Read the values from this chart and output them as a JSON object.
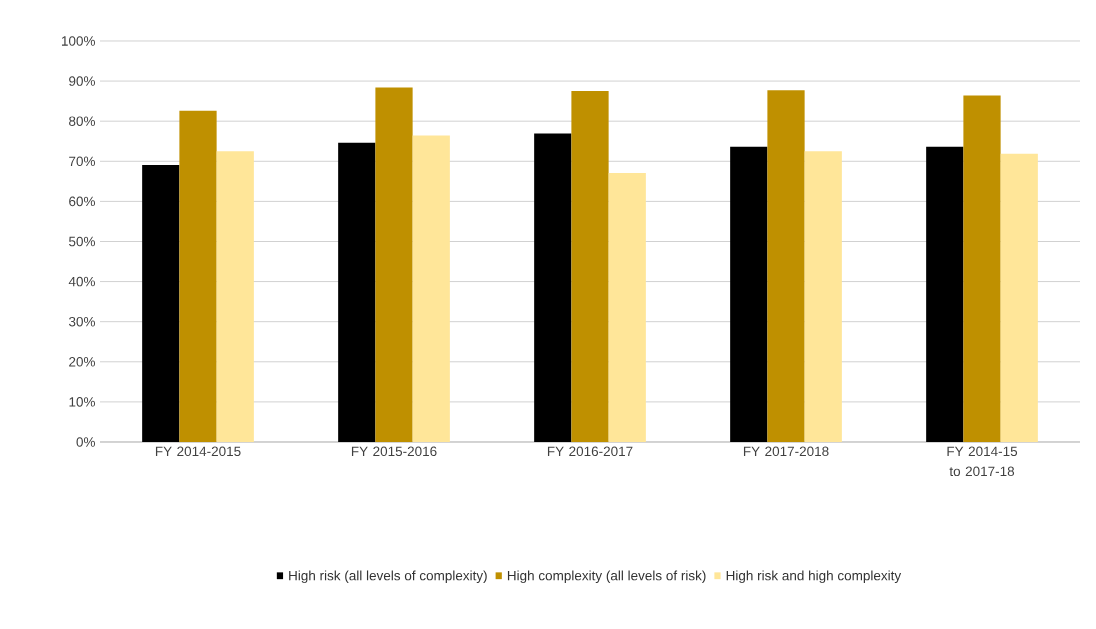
{
  "chart_data": {
    "type": "bar",
    "categories": [
      "FY 2014-2015",
      "FY 2015-2016",
      "FY 2016-2017",
      "FY 2017-2018",
      "FY 2014-15 to 2017-18"
    ],
    "series": [
      {
        "name": "High risk (all levels of complexity)",
        "color": "#000000",
        "values": [
          69.1,
          74.6,
          76.9,
          73.6,
          73.6
        ]
      },
      {
        "name": "High complexity (all levels of risk)",
        "color": "#bf9000",
        "values": [
          82.6,
          88.4,
          87.5,
          87.7,
          86.4
        ]
      },
      {
        "name": "High risk and high complexity",
        "color": "#ffe699",
        "values": [
          72.5,
          76.4,
          67.1,
          72.5,
          71.9
        ]
      }
    ],
    "ylim": [
      0,
      100
    ],
    "yticks": [
      {
        "value": 0,
        "label": "0%"
      },
      {
        "value": 10,
        "label": "10%"
      },
      {
        "value": 20,
        "label": "20%"
      },
      {
        "value": 30,
        "label": "30%"
      },
      {
        "value": 40,
        "label": "40%"
      },
      {
        "value": 50,
        "label": "50%"
      },
      {
        "value": 60,
        "label": "60%"
      },
      {
        "value": 70,
        "label": "70%"
      },
      {
        "value": 80,
        "label": "80%"
      },
      {
        "value": 90,
        "label": "90%"
      },
      {
        "value": 100,
        "label": "100%"
      }
    ],
    "grid": "y",
    "legend": "bottom"
  }
}
